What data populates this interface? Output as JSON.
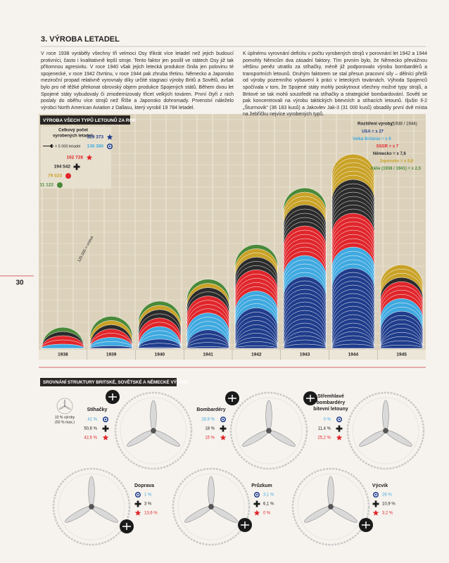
{
  "header": {
    "title": "3. VÝROBA LETADEL"
  },
  "page_number": "30",
  "intro": {
    "left": "V roce 1938 vyráběly všechny tři velmoci Osy třikrát více letadel než jejich budoucí protivníci, často i kvalitativně lepší stroje. Tento faktor jen posílil ve státech Osy již tak přítomnou agresivitu. V roce 1940 však jejich letecká produkce činila jen polovinu té spojenecké, v roce 1942 čtvrtinu, v roce 1944 pak zhruba třetinu. Německo a Japonsko meziroční propad relativně vyrovnaly díky určité stagnaci výroby Britů a Sovětů, avšak bylo pro ně těžké překonat obrovský objem produkce Spojených států. Během dvou let Spojené státy vybudovaly či zmodernizovaly třicet velkých továren. První čtyři z nich poslaly do oběhu více strojů než Říše a Japonsko dohromady. Prvenství náleželo výrobci North American Aviation z Dallasu, který vyrobil 19 784 letadel.",
    "right": "K úplnému vyrovnání deficitu v počtu vyrobených strojů v porovnání let 1942 a 1944 pomohly Němcům dva zásadní faktory. Tím prvním bylo, že Německo převážnou většinu peněz utratilo za stíhačky, méně již podporovalo výrobu bombardérů a transportních letounů. Druhým faktorem se stal přesun pracovní síly – dělníci přešli od výroby pozemního vybavení k práci v leteckých továrnách. Výhoda Spojenců spočívala v tom, že Spojené státy mohly poskytnout všechny možné typy strojů, a Britové se tak mohli soustředit na stíhačky a strategické bombardování. Sověti se pak koncentrovali na výrobu taktických bitevních a stíhacích letounů. Iljušin Il-2 „Šturmovik“ (36 183 kusů) a Jakovlev Jak-3 (31 000 kusů) obsadily první dvě místa na žebříčku nejvíce vyrobených typů."
  },
  "production": {
    "title": "VÝROBA VŠECH TYPŮ LETOUNŮ ZA ROK",
    "legend_title": [
      "Celkový počet",
      "vyrobených letadel:"
    ],
    "unit_note": "= 5 000 letadel",
    "scale_note": "125 000 = vrstva",
    "totals": [
      "329 373",
      "136 380",
      "162 728",
      "194 542",
      "79 523",
      "11 122"
    ],
    "growth_title": "Rozšíření výroby:",
    "growth_period": "(1938 / 1944)",
    "growth": [
      "USA = x 27",
      "Velká Británie = x 9",
      "SSSR = x 7",
      "Německo = x 7,6",
      "Japonsko = x 8,8",
      "Itálie (1938 / 1941) = x 2,5"
    ],
    "years": [
      "1938",
      "1939",
      "1940",
      "1941",
      "1942",
      "1943",
      "1944",
      "1945"
    ]
  },
  "structure": {
    "title": "SROVNÁNÍ STRUKTURY BRITSKÉ, SOVĚTSKÉ A NĚMECKÉ VÝROBY",
    "legend_note": [
      "10 % výroby",
      "(50 % max.)"
    ],
    "gauges": [
      {
        "label": [
          "Stíhačky"
        ],
        "values": [
          "41 %",
          "50,6 %",
          "42,6 %"
        ]
      },
      {
        "label": [
          "Bombardéry"
        ],
        "values": [
          "28,9 %",
          "18 %",
          "15 %"
        ]
      },
      {
        "label": [
          "Střemhlavé",
          "bombardéry",
          "bitevní letouny"
        ],
        "values": [
          "0 %",
          "11,4 %",
          "25,2 %"
        ]
      },
      {
        "label": [
          "Doprava"
        ],
        "values": [
          "1 %",
          "3 %",
          "13,6 %"
        ]
      },
      {
        "label": [
          "Průzkum"
        ],
        "values": [
          "3,1 %",
          "6,1 %",
          "0 %"
        ]
      },
      {
        "label": [
          "Výcvik"
        ],
        "values": [
          "26 %",
          "10,9 %",
          "3,2 %"
        ]
      }
    ]
  }
}
